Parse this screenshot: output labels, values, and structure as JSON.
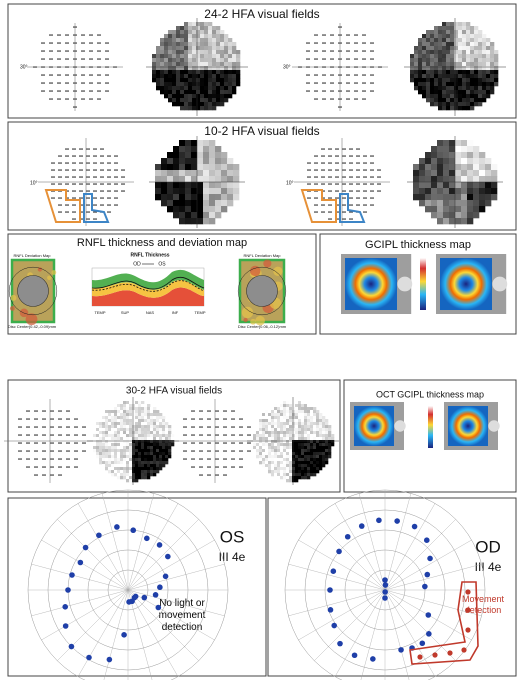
{
  "panels": {
    "hfa_24_2": {
      "title": "24-2 HFA visual fields",
      "axis_label": "30°"
    },
    "hfa_10_2": {
      "title": "10-2 HFA visual fields",
      "axis_label": "10°"
    },
    "rnfl": {
      "title": "RNFL thickness and deviation map",
      "left_map_title": "RNFL Deviation Map",
      "chart_title": "RNFL Thickness",
      "legend": [
        "OD",
        "OS"
      ],
      "axis_labels": [
        "TEMP",
        "SUP",
        "NAS",
        "INF",
        "TEMP"
      ],
      "right_map_title": "RNFL Deviation Map",
      "left_caption": "Disc Center(0.42,-0.09)mm",
      "right_caption": "Disc Center(0.06,-0.12)mm"
    },
    "gcipl": {
      "title": "GCIPL thickness map"
    },
    "hfa_30_2": {
      "title": "30-2 HFA visual fields"
    },
    "oct_gcipl": {
      "title": "OCT GCIPL thickness map"
    },
    "goldmann_os": {
      "eye": "OS",
      "stimulus": "III 4e",
      "note": "No light or movement detection"
    },
    "goldmann_od": {
      "eye": "OD",
      "stimulus": "III 4e",
      "note": "Movement detection"
    }
  }
}
